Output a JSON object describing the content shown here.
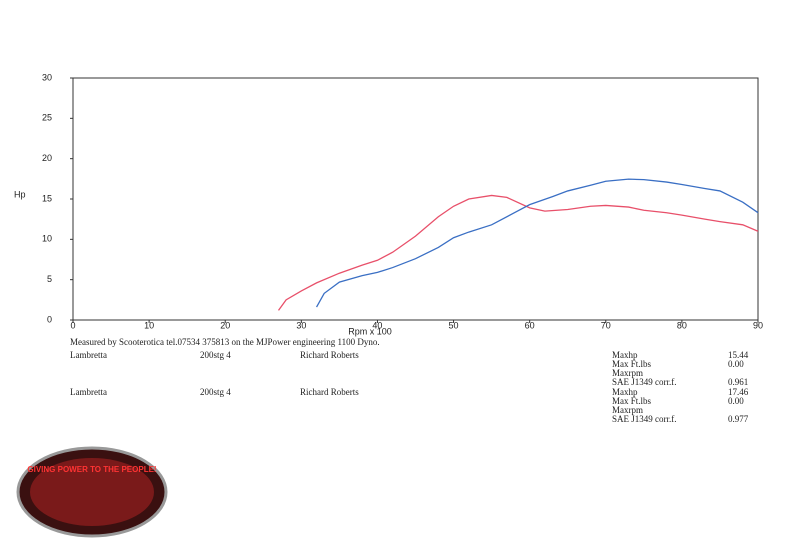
{
  "chart_data": {
    "type": "line",
    "ylabel": "Hp",
    "xlabel": "Rpm x 100",
    "xlim": [
      0,
      90
    ],
    "ylim": [
      0,
      30
    ],
    "xticks": [
      0,
      10,
      20,
      30,
      40,
      50,
      60,
      70,
      80,
      90
    ],
    "yticks": [
      0,
      5,
      10,
      15,
      20,
      25,
      30
    ],
    "series": [
      {
        "color": "#e8506a",
        "x": [
          27,
          28,
          30,
          32,
          35,
          38,
          40,
          42,
          45,
          48,
          50,
          52,
          55,
          57,
          60,
          62,
          65,
          68,
          70,
          73,
          75,
          78,
          80,
          83,
          85,
          88,
          90
        ],
        "values": [
          1.2,
          2.5,
          3.6,
          4.6,
          5.8,
          6.8,
          7.4,
          8.4,
          10.4,
          12.8,
          14.1,
          15.0,
          15.44,
          15.2,
          13.9,
          13.5,
          13.7,
          14.1,
          14.2,
          14.0,
          13.6,
          13.3,
          13.0,
          12.5,
          12.2,
          11.8,
          11.0
        ]
      },
      {
        "color": "#3a6fc4",
        "x": [
          32,
          33,
          35,
          38,
          40,
          42,
          45,
          48,
          50,
          52,
          55,
          58,
          60,
          63,
          65,
          68,
          70,
          73,
          75,
          78,
          80,
          83,
          85,
          88,
          90
        ],
        "values": [
          1.6,
          3.3,
          4.7,
          5.5,
          5.9,
          6.5,
          7.6,
          9.0,
          10.2,
          10.9,
          11.8,
          13.3,
          14.3,
          15.3,
          16.0,
          16.7,
          17.2,
          17.46,
          17.4,
          17.1,
          16.8,
          16.3,
          16.0,
          14.6,
          13.3
        ]
      }
    ]
  },
  "footer": "Measured by Scooterotica tel.07534 375813 on the MJPower engineering 1100 Dyno.",
  "runs": [
    {
      "make": "Lambretta",
      "spec": "200stg 4",
      "rider": "Richard Roberts",
      "stats": [
        {
          "label": "Maxhp",
          "value": "15.44"
        },
        {
          "label": "Max Ft.lbs",
          "value": "0.00"
        },
        {
          "label": "Maxrpm",
          "value": ""
        },
        {
          "label": "SAE J1349 corr.f.",
          "value": "0.961"
        }
      ]
    },
    {
      "make": "Lambretta",
      "spec": "200stg 4",
      "rider": "Richard Roberts",
      "stats": [
        {
          "label": "Maxhp",
          "value": "17.46"
        },
        {
          "label": "Max Ft.lbs",
          "value": "0.00"
        },
        {
          "label": "Maxrpm",
          "value": ""
        },
        {
          "label": "SAE J1349 corr.f.",
          "value": "0.977"
        }
      ]
    }
  ],
  "logo": "GIVING POWER TO THE PEOPLE!"
}
